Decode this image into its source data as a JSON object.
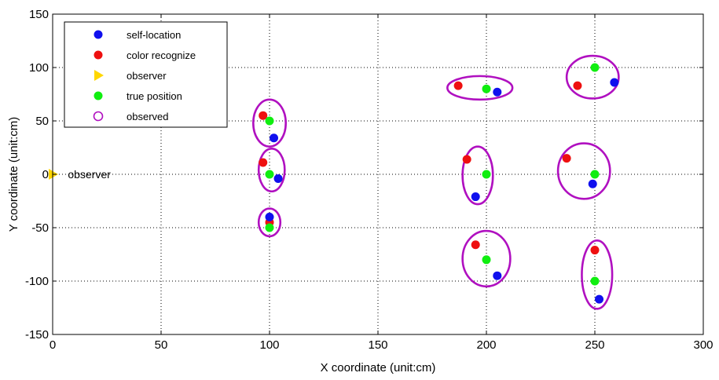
{
  "chart_data": {
    "type": "scatter",
    "title": "",
    "xlabel": "X coordinate (unit:cm)",
    "ylabel": "Y coordinate (unit:cm)",
    "xlim": [
      0,
      300
    ],
    "ylim": [
      -150,
      150
    ],
    "xticks": [
      0,
      50,
      100,
      150,
      200,
      250,
      300
    ],
    "yticks": [
      -150,
      -100,
      -50,
      0,
      50,
      100,
      150
    ],
    "grid": true,
    "grid_style": "dotted",
    "legend_position": "top-left",
    "series": [
      {
        "name": "self-location",
        "marker": "circle-filled",
        "color": "#1010ee",
        "points": [
          [
            102,
            34
          ],
          [
            104,
            -4
          ],
          [
            100,
            -40
          ],
          [
            205,
            77
          ],
          [
            259,
            86
          ],
          [
            195,
            -21
          ],
          [
            249,
            -9
          ],
          [
            205,
            -95
          ],
          [
            252,
            -117
          ]
        ]
      },
      {
        "name": "color recognize",
        "marker": "circle-filled",
        "color": "#ee1010",
        "points": [
          [
            97,
            55
          ],
          [
            97,
            11
          ],
          [
            100,
            -45
          ],
          [
            187,
            83
          ],
          [
            242,
            83
          ],
          [
            191,
            14
          ],
          [
            237,
            15
          ],
          [
            195,
            -66
          ],
          [
            250,
            -71
          ]
        ]
      },
      {
        "name": "observer",
        "marker": "triangle-right",
        "color": "#ffd700",
        "points": [
          [
            0,
            0
          ]
        ]
      },
      {
        "name": "true position",
        "marker": "circle-filled",
        "color": "#10ee10",
        "points": [
          [
            100,
            50
          ],
          [
            100,
            0
          ],
          [
            100,
            -50
          ],
          [
            200,
            80
          ],
          [
            250,
            100
          ],
          [
            200,
            0
          ],
          [
            250,
            0
          ],
          [
            200,
            -80
          ],
          [
            250,
            -100
          ]
        ]
      },
      {
        "name": "observed",
        "marker": "circle-open",
        "color": "#b010c0",
        "ellipses": [
          {
            "cx": 100,
            "cy": 48,
            "rx": 7.5,
            "ry": 22
          },
          {
            "cx": 101,
            "cy": 4,
            "rx": 6,
            "ry": 20
          },
          {
            "cx": 100,
            "cy": -45,
            "rx": 5,
            "ry": 13
          },
          {
            "cx": 197,
            "cy": 81,
            "rx": 15,
            "ry": 11
          },
          {
            "cx": 249,
            "cy": 91,
            "rx": 12,
            "ry": 20
          },
          {
            "cx": 196,
            "cy": -1,
            "rx": 7,
            "ry": 27
          },
          {
            "cx": 245,
            "cy": 3,
            "rx": 12,
            "ry": 26
          },
          {
            "cx": 200,
            "cy": -79,
            "rx": 11,
            "ry": 26
          },
          {
            "cx": 251,
            "cy": -94,
            "rx": 7,
            "ry": 32
          }
        ]
      }
    ],
    "annotations": [
      {
        "text": "observer",
        "x": 7,
        "y": 0
      }
    ]
  }
}
